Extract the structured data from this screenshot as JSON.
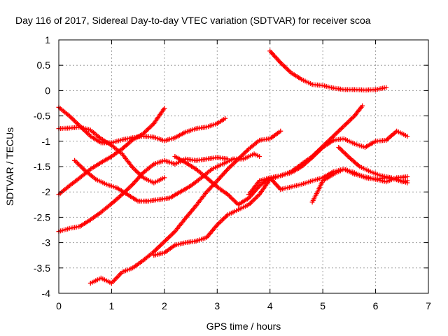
{
  "chart_data": {
    "type": "scatter",
    "title": "Day 116 of 2017, Sidereal Day-to-day VTEC variation (SDTVAR) for receiver scoa",
    "xlabel": "GPS time / hours",
    "ylabel": "SDTVAR / TECUs",
    "xlim": [
      0,
      7
    ],
    "ylim": [
      -4,
      1
    ],
    "xticks": [
      0,
      1,
      2,
      3,
      4,
      5,
      6,
      7
    ],
    "yticks": [
      -4,
      -3.5,
      -3,
      -2.5,
      -2,
      -1.5,
      -1,
      -0.5,
      0,
      0.5,
      1
    ],
    "xtick_labels": [
      "0",
      "1",
      "2",
      "3",
      "4",
      "5",
      "6",
      "7"
    ],
    "ytick_labels": [
      "-4",
      "-3.5",
      "-3",
      "-2.5",
      "-2",
      "-1.5",
      "-1",
      "-0.5",
      "0",
      "0.5",
      "1"
    ],
    "grid": true,
    "marker": "+",
    "color": "#ff0000",
    "series": [
      {
        "x": [
          0.0,
          0.2,
          0.4,
          0.6,
          0.8,
          1.0,
          1.2,
          1.4,
          1.6,
          1.8,
          2.0,
          2.2,
          2.4,
          2.6,
          2.8,
          3.0,
          3.15
        ],
        "y": [
          -0.33,
          -0.5,
          -0.7,
          -0.9,
          -1.03,
          -1.03,
          -0.97,
          -0.93,
          -0.9,
          -0.92,
          -0.99,
          -0.93,
          -0.82,
          -0.75,
          -0.72,
          -0.65,
          -0.55
        ]
      },
      {
        "x": [
          0.0,
          0.2,
          0.4,
          0.6,
          0.8,
          1.0,
          1.2,
          1.4,
          1.6,
          1.8,
          2.0
        ],
        "y": [
          -2.05,
          -1.88,
          -1.72,
          -1.55,
          -1.42,
          -1.3,
          -1.15,
          -0.97,
          -0.85,
          -0.65,
          -0.35
        ]
      },
      {
        "x": [
          0.0,
          0.2,
          0.4,
          0.6,
          0.8,
          1.0,
          1.2,
          1.4,
          1.6,
          1.8,
          2.0,
          2.2,
          2.4,
          2.6,
          2.8,
          3.0,
          3.2
        ],
        "y": [
          -2.78,
          -2.72,
          -2.68,
          -2.55,
          -2.4,
          -2.23,
          -2.05,
          -1.85,
          -1.62,
          -1.45,
          -1.38,
          -1.45,
          -1.35,
          -1.38,
          -1.35,
          -1.32,
          -1.35
        ]
      },
      {
        "x": [
          0.0,
          0.2,
          0.4,
          0.6,
          0.8,
          1.0,
          1.2,
          1.4,
          1.6,
          1.8,
          2.0
        ],
        "y": [
          -0.75,
          -0.74,
          -0.72,
          -0.78,
          -0.95,
          -1.08,
          -1.25,
          -1.52,
          -1.72,
          -1.82,
          -1.72
        ]
      },
      {
        "x": [
          0.3,
          0.5,
          0.7,
          0.9,
          1.1,
          1.3,
          1.5,
          1.7,
          1.9,
          2.1,
          2.3,
          2.5,
          2.7,
          2.9,
          3.1,
          3.3,
          3.5,
          3.7,
          3.8
        ],
        "y": [
          -1.38,
          -1.58,
          -1.75,
          -1.85,
          -1.92,
          -2.05,
          -2.18,
          -2.18,
          -2.15,
          -2.12,
          -2.0,
          -1.88,
          -1.72,
          -1.55,
          -1.45,
          -1.35,
          -1.35,
          -1.25,
          -1.3
        ]
      },
      {
        "x": [
          0.6,
          0.8,
          1.0,
          1.2,
          1.4,
          1.6,
          1.8,
          2.0,
          2.2,
          2.4,
          2.6,
          2.8,
          3.0,
          3.2,
          3.4,
          3.6,
          3.8,
          4.0,
          4.2
        ],
        "y": [
          -3.8,
          -3.7,
          -3.8,
          -3.58,
          -3.5,
          -3.35,
          -3.18,
          -2.98,
          -2.78,
          -2.52,
          -2.27,
          -2.0,
          -1.78,
          -1.55,
          -1.35,
          -1.15,
          -0.98,
          -0.95,
          -0.8
        ]
      },
      {
        "x": [
          1.8,
          2.0,
          2.2,
          2.4,
          2.6,
          2.8,
          3.0,
          3.2,
          3.4,
          3.6,
          3.8,
          4.0,
          4.2,
          4.4,
          4.6,
          4.8,
          5.0,
          5.2,
          5.4,
          5.6,
          5.75
        ],
        "y": [
          -3.25,
          -3.2,
          -3.05,
          -3.0,
          -2.97,
          -2.9,
          -2.65,
          -2.45,
          -2.35,
          -2.25,
          -2.05,
          -1.75,
          -1.68,
          -1.6,
          -1.45,
          -1.3,
          -1.1,
          -0.9,
          -0.7,
          -0.5,
          -0.3
        ]
      },
      {
        "x": [
          2.2,
          2.4,
          2.6,
          2.8,
          3.0,
          3.2,
          3.4,
          3.6,
          3.8,
          4.0,
          4.2,
          4.4,
          4.6,
          4.8,
          5.0,
          5.2,
          5.4,
          5.6,
          5.8,
          6.0,
          6.2,
          6.4,
          6.6
        ],
        "y": [
          -1.3,
          -1.42,
          -1.55,
          -1.72,
          -1.9,
          -2.05,
          -2.25,
          -2.12,
          -1.88,
          -1.72,
          -1.68,
          -1.62,
          -1.5,
          -1.32,
          -1.12,
          -0.98,
          -0.95,
          -1.05,
          -1.12,
          -1.0,
          -0.98,
          -0.8,
          -0.9
        ]
      },
      {
        "x": [
          3.6,
          3.8,
          4.0,
          4.2,
          4.4,
          4.6,
          4.8,
          5.0,
          5.2,
          5.4,
          5.6,
          5.8,
          6.0,
          6.2,
          6.4,
          6.6
        ],
        "y": [
          -2.05,
          -1.78,
          -1.72,
          -1.95,
          -1.9,
          -1.85,
          -1.78,
          -1.72,
          -1.6,
          -1.55,
          -1.65,
          -1.7,
          -1.75,
          -1.72,
          -1.75,
          -1.82
        ]
      },
      {
        "x": [
          4.0,
          4.2,
          4.4,
          4.6,
          4.8,
          5.0,
          5.2,
          5.4,
          5.6,
          5.8,
          6.0,
          6.2
        ],
        "y": [
          0.78,
          0.55,
          0.35,
          0.22,
          0.12,
          0.1,
          0.05,
          0.02,
          0.02,
          0.01,
          0.02,
          0.06
        ]
      },
      {
        "x": [
          4.8,
          4.9,
          5.0,
          5.2,
          5.4,
          5.6,
          5.8,
          6.0,
          6.2,
          6.4,
          6.6
        ],
        "y": [
          -2.2,
          -2.0,
          -1.78,
          -1.65,
          -1.55,
          -1.62,
          -1.72,
          -1.75,
          -1.8,
          -1.72,
          -1.7
        ]
      },
      {
        "x": [
          5.3,
          5.5,
          5.7,
          5.9,
          6.1,
          6.3,
          6.5,
          6.6
        ],
        "y": [
          -1.12,
          -1.32,
          -1.5,
          -1.6,
          -1.68,
          -1.72,
          -1.8,
          -1.78
        ]
      }
    ]
  }
}
